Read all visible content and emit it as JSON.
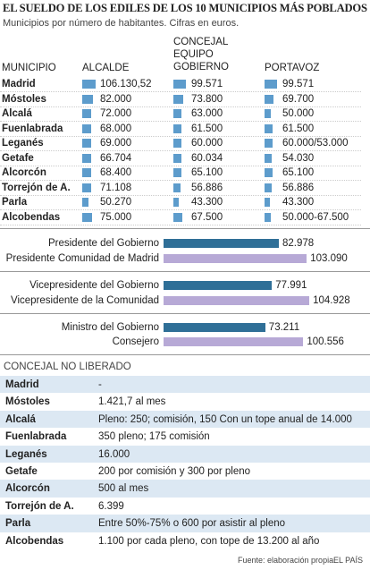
{
  "title": "EL SUELDO DE LOS EDILES DE LOS 10 MUNICIPIOS MÁS POBLADOS",
  "subtitle": "Municipios por número de habitantes. Cifras en euros.",
  "chart_data": [
    {
      "type": "bar-table",
      "category_label": "MUNICIPIO",
      "categories": [
        "Madrid",
        "Móstoles",
        "Alcalá",
        "Fuenlabrada",
        "Leganés",
        "Getafe",
        "Alcorcón",
        "Torrejón de A.",
        "Parla",
        "Alcobendas"
      ],
      "xlim": [
        0,
        110000
      ],
      "series": [
        {
          "name": "ALCALDE",
          "color": "#5d9ccc",
          "values": [
            106130.52,
            82000,
            72000,
            68000,
            69000,
            66704,
            68400,
            71108,
            50270,
            75000
          ],
          "value_labels": [
            "106.130,52",
            "82.000",
            "72.000",
            "68.000",
            "69.000",
            "66.704",
            "68.400",
            "71.108",
            "50.270",
            "75.000"
          ]
        },
        {
          "name": "CONCEJAL EQUIPO GOBIERNO",
          "color": "#5d9ccc",
          "values": [
            99571,
            73800,
            63000,
            61500,
            60000,
            60034,
            65100,
            56886,
            43300,
            67500
          ],
          "value_labels": [
            "99.571",
            "73.800",
            "63.000",
            "61.500",
            "60.000",
            "60.034",
            "65.100",
            "56.886",
            "43.300",
            "67.500"
          ]
        },
        {
          "name": "PORTAVOZ",
          "color": "#5d9ccc",
          "values": [
            99571,
            69700,
            50000,
            61500,
            60000,
            54030,
            65100,
            56886,
            43300,
            50000
          ],
          "value_labels": [
            "99.571",
            "69.700",
            "50.000",
            "61.500",
            "60.000/53.000",
            "54.030",
            "65.100",
            "56.886",
            "43.300",
            "50.000-67.500"
          ]
        }
      ]
    },
    {
      "type": "bar",
      "categories": [
        "Presidente del Gobierno",
        "Presidente Comunidad de Madrid",
        "Vicepresidente del Gobierno",
        "Vicepresidente de la Comunidad",
        "Ministro del Gobierno",
        "Consejero"
      ],
      "values": [
        82978,
        103090,
        77991,
        104928,
        73211,
        100556
      ],
      "value_labels": [
        "82.978",
        "103.090",
        "77.991",
        "104.928",
        "73.211",
        "100.556"
      ],
      "colors": [
        "#2f6f97",
        "#b7a9d6",
        "#2f6f97",
        "#b7a9d6",
        "#2f6f97",
        "#b7a9d6"
      ],
      "xlim": [
        0,
        110000
      ]
    }
  ],
  "table": {
    "title": "CONCEJAL NO LIBERADO",
    "rows": [
      [
        "Madrid",
        "-"
      ],
      [
        "Móstoles",
        "1.421,7 al mes"
      ],
      [
        "Alcalá",
        "Pleno: 250; comisión, 150 Con un tope anual de 14.000"
      ],
      [
        "Fuenlabrada",
        "350 pleno; 175 comisión"
      ],
      [
        "Leganés",
        "16.000"
      ],
      [
        "Getafe",
        "200 por comisión y 300 por pleno"
      ],
      [
        "Alcorcón",
        "500 al mes"
      ],
      [
        "Torrejón de A.",
        "6.399"
      ],
      [
        "Parla",
        "Entre 50%-75% o 600 por asistir al pleno"
      ],
      [
        "Alcobendas",
        "1.100 por cada pleno, con tope de 13.200 al año"
      ]
    ]
  },
  "source": "Fuente: elaboración propia.",
  "credit": "EL PAÍS"
}
